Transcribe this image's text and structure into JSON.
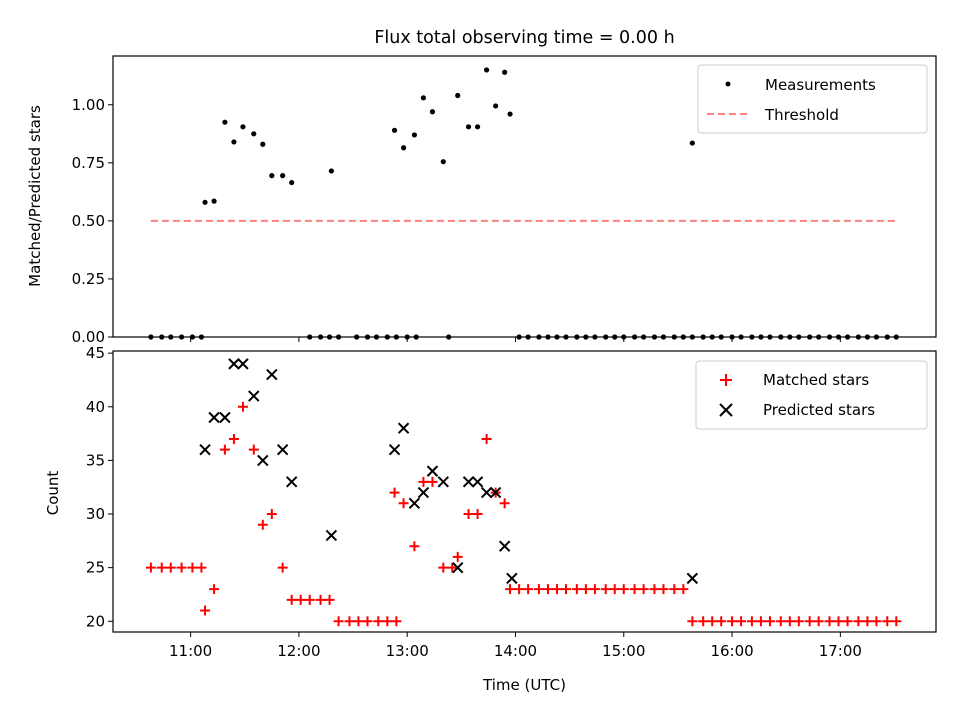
{
  "figure": {
    "title": "Flux total observing time = 0.00 h"
  },
  "chart_data": [
    {
      "type": "scatter",
      "ylabel": "Matched/Predicted stars",
      "xlabel": "",
      "xlim": [
        "10:17",
        "17:53"
      ],
      "ylim": [
        0,
        1.21
      ],
      "yticks": [
        0.0,
        0.25,
        0.5,
        0.75,
        1.0
      ],
      "ytick_labels": [
        "0.00",
        "0.25",
        "0.50",
        "0.75",
        "1.00"
      ],
      "legend_position": "top-right",
      "series": [
        {
          "name": "Measurements",
          "marker": "dot",
          "color": "#000000",
          "points": [
            [
              "10:38",
              0
            ],
            [
              "10:44",
              0
            ],
            [
              "10:49",
              0
            ],
            [
              "10:55",
              0
            ],
            [
              "11:01",
              0
            ],
            [
              "11:06",
              0
            ],
            [
              "11:08",
              0.58
            ],
            [
              "11:13",
              0.585
            ],
            [
              "11:19",
              0.925
            ],
            [
              "11:24",
              0.84
            ],
            [
              "11:29",
              0.905
            ],
            [
              "11:35",
              0.875
            ],
            [
              "11:40",
              0.83
            ],
            [
              "11:45",
              0.695
            ],
            [
              "11:51",
              0.695
            ],
            [
              "11:56",
              0.665
            ],
            [
              "12:06",
              0
            ],
            [
              "12:12",
              0
            ],
            [
              "12:17",
              0
            ],
            [
              "12:22",
              0
            ],
            [
              "12:18",
              0.715
            ],
            [
              "12:32",
              0
            ],
            [
              "12:38",
              0
            ],
            [
              "12:43",
              0
            ],
            [
              "12:49",
              0
            ],
            [
              "12:54",
              0
            ],
            [
              "13:00",
              0
            ],
            [
              "13:05",
              0
            ],
            [
              "12:53",
              0.89
            ],
            [
              "12:58",
              0.815
            ],
            [
              "13:04",
              0.87
            ],
            [
              "13:09",
              1.03
            ],
            [
              "13:14",
              0.97
            ],
            [
              "13:20",
              0.755
            ],
            [
              "13:23",
              0
            ],
            [
              "13:28",
              1.04
            ],
            [
              "13:34",
              0.905
            ],
            [
              "13:39",
              0.905
            ],
            [
              "13:44",
              1.15
            ],
            [
              "13:49",
              0.995
            ],
            [
              "13:54",
              1.14
            ],
            [
              "13:57",
              0.96
            ],
            [
              "14:02",
              0
            ],
            [
              "14:07",
              0
            ],
            [
              "14:13",
              0
            ],
            [
              "14:18",
              0
            ],
            [
              "14:23",
              0
            ],
            [
              "14:28",
              0
            ],
            [
              "14:34",
              0
            ],
            [
              "14:39",
              0
            ],
            [
              "14:44",
              0
            ],
            [
              "14:50",
              0
            ],
            [
              "14:55",
              0
            ],
            [
              "15:00",
              0
            ],
            [
              "15:06",
              0
            ],
            [
              "15:11",
              0
            ],
            [
              "15:17",
              0
            ],
            [
              "15:22",
              0
            ],
            [
              "15:28",
              0
            ],
            [
              "15:33",
              0
            ],
            [
              "15:38",
              0
            ],
            [
              "15:44",
              0
            ],
            [
              "15:49",
              0
            ],
            [
              "15:54",
              0
            ],
            [
              "16:00",
              0
            ],
            [
              "16:05",
              0
            ],
            [
              "16:11",
              0
            ],
            [
              "16:16",
              0
            ],
            [
              "16:21",
              0
            ],
            [
              "16:27",
              0
            ],
            [
              "16:32",
              0
            ],
            [
              "16:37",
              0
            ],
            [
              "16:43",
              0
            ],
            [
              "16:48",
              0
            ],
            [
              "16:54",
              0
            ],
            [
              "16:59",
              0
            ],
            [
              "17:04",
              0
            ],
            [
              "17:10",
              0
            ],
            [
              "17:15",
              0
            ],
            [
              "17:20",
              0
            ],
            [
              "17:26",
              0
            ],
            [
              "17:31",
              0
            ],
            [
              "15:38",
              0.835
            ]
          ]
        },
        {
          "name": "Threshold",
          "marker": "dashed-line",
          "color": "#ff8080",
          "points": [
            [
              "10:38",
              0.5
            ],
            [
              "17:31",
              0.5
            ]
          ]
        }
      ]
    },
    {
      "type": "scatter",
      "xlabel": "Time (UTC)",
      "ylabel": "Count",
      "xlim": [
        "10:17",
        "17:53"
      ],
      "ylim": [
        19.0,
        45.2
      ],
      "yticks": [
        20,
        25,
        30,
        35,
        40,
        45
      ],
      "xticks": [
        "11:00",
        "12:00",
        "13:00",
        "14:00",
        "15:00",
        "16:00",
        "17:00"
      ],
      "legend_position": "top-right",
      "series": [
        {
          "name": "Matched stars",
          "marker": "plus",
          "color": "#ff0000",
          "points": [
            [
              "10:38",
              25
            ],
            [
              "10:44",
              25
            ],
            [
              "10:49",
              25
            ],
            [
              "10:55",
              25
            ],
            [
              "11:01",
              25
            ],
            [
              "11:06",
              25
            ],
            [
              "11:08",
              21
            ],
            [
              "11:13",
              23
            ],
            [
              "11:19",
              36
            ],
            [
              "11:24",
              37
            ],
            [
              "11:29",
              40
            ],
            [
              "11:35",
              36
            ],
            [
              "11:40",
              29
            ],
            [
              "11:45",
              30
            ],
            [
              "11:51",
              25
            ],
            [
              "11:56",
              22
            ],
            [
              "12:01",
              22
            ],
            [
              "12:06",
              22
            ],
            [
              "12:12",
              22
            ],
            [
              "12:17",
              22
            ],
            [
              "12:22",
              20
            ],
            [
              "12:28",
              20
            ],
            [
              "12:33",
              20
            ],
            [
              "12:38",
              20
            ],
            [
              "12:44",
              20
            ],
            [
              "12:49",
              20
            ],
            [
              "12:54",
              20
            ],
            [
              "12:53",
              32
            ],
            [
              "12:58",
              31
            ],
            [
              "13:04",
              27
            ],
            [
              "13:09",
              33
            ],
            [
              "13:14",
              33
            ],
            [
              "13:20",
              25
            ],
            [
              "13:25",
              25
            ],
            [
              "13:28",
              26
            ],
            [
              "13:34",
              30
            ],
            [
              "13:39",
              30
            ],
            [
              "13:44",
              37
            ],
            [
              "13:49",
              32
            ],
            [
              "13:54",
              31
            ],
            [
              "13:57",
              23
            ],
            [
              "14:02",
              23
            ],
            [
              "14:07",
              23
            ],
            [
              "14:13",
              23
            ],
            [
              "14:18",
              23
            ],
            [
              "14:23",
              23
            ],
            [
              "14:28",
              23
            ],
            [
              "14:34",
              23
            ],
            [
              "14:39",
              23
            ],
            [
              "14:44",
              23
            ],
            [
              "14:50",
              23
            ],
            [
              "14:55",
              23
            ],
            [
              "15:00",
              23
            ],
            [
              "15:06",
              23
            ],
            [
              "15:11",
              23
            ],
            [
              "15:17",
              23
            ],
            [
              "15:22",
              23
            ],
            [
              "15:28",
              23
            ],
            [
              "15:33",
              23
            ],
            [
              "15:38",
              20
            ],
            [
              "15:44",
              20
            ],
            [
              "15:49",
              20
            ],
            [
              "15:54",
              20
            ],
            [
              "16:00",
              20
            ],
            [
              "16:05",
              20
            ],
            [
              "16:11",
              20
            ],
            [
              "16:16",
              20
            ],
            [
              "16:21",
              20
            ],
            [
              "16:27",
              20
            ],
            [
              "16:32",
              20
            ],
            [
              "16:37",
              20
            ],
            [
              "16:43",
              20
            ],
            [
              "16:48",
              20
            ],
            [
              "16:54",
              20
            ],
            [
              "16:59",
              20
            ],
            [
              "17:04",
              20
            ],
            [
              "17:10",
              20
            ],
            [
              "17:15",
              20
            ],
            [
              "17:20",
              20
            ],
            [
              "17:26",
              20
            ],
            [
              "17:31",
              20
            ]
          ]
        },
        {
          "name": "Predicted stars",
          "marker": "x",
          "color": "#000000",
          "points": [
            [
              "11:08",
              36
            ],
            [
              "11:13",
              39
            ],
            [
              "11:19",
              39
            ],
            [
              "11:24",
              44
            ],
            [
              "11:29",
              44
            ],
            [
              "11:35",
              41
            ],
            [
              "11:40",
              35
            ],
            [
              "11:45",
              43
            ],
            [
              "11:51",
              36
            ],
            [
              "11:56",
              33
            ],
            [
              "12:18",
              28
            ],
            [
              "12:53",
              36
            ],
            [
              "12:58",
              38
            ],
            [
              "13:04",
              31
            ],
            [
              "13:09",
              32
            ],
            [
              "13:14",
              34
            ],
            [
              "13:20",
              33
            ],
            [
              "13:28",
              25
            ],
            [
              "13:34",
              33
            ],
            [
              "13:39",
              33
            ],
            [
              "13:44",
              32
            ],
            [
              "13:49",
              32
            ],
            [
              "13:54",
              27
            ],
            [
              "13:58",
              24
            ],
            [
              "15:38",
              24
            ]
          ]
        }
      ]
    }
  ]
}
